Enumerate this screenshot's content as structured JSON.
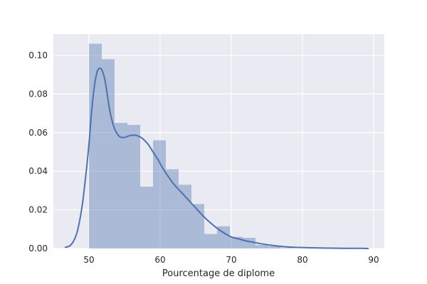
{
  "chart_data": {
    "type": "bar",
    "title": "",
    "xlabel": "Pourcentage de diplome",
    "ylabel": "",
    "xlim": [
      45,
      91.5
    ],
    "ylim": [
      0,
      0.111
    ],
    "grid": true,
    "x_ticks": [
      50,
      60,
      70,
      80,
      90
    ],
    "y_ticks": [
      0.0,
      0.02,
      0.04,
      0.06,
      0.08,
      0.1
    ],
    "x_tick_labels": [
      "50",
      "60",
      "70",
      "80",
      "90"
    ],
    "y_tick_labels": [
      "0.00",
      "0.02",
      "0.04",
      "0.06",
      "0.08",
      "0.10"
    ],
    "histogram": {
      "bin_edges": [
        50,
        51.8,
        53.6,
        55.4,
        57.2,
        59.0,
        60.8,
        62.6,
        64.4,
        66.2,
        68.0,
        69.8,
        71.6,
        73.4,
        75.2,
        77.0,
        78.8
      ],
      "density": [
        0.106,
        0.098,
        0.065,
        0.064,
        0.032,
        0.056,
        0.041,
        0.033,
        0.023,
        0.0075,
        0.0115,
        0.006,
        0.0055,
        0.0018,
        0.0012,
        0.0003
      ],
      "color": "#4c72b0",
      "opacity": 0.4
    },
    "kde": {
      "x": [
        46.6,
        47.5,
        48.3,
        49.0,
        49.5,
        50.0,
        50.4,
        50.8,
        51.2,
        51.7,
        52.2,
        52.6,
        53.0,
        53.6,
        54.3,
        55.0,
        55.8,
        56.7,
        57.5,
        58.3,
        59.0,
        59.7,
        60.3,
        61.0,
        62.0,
        63.0,
        64.0,
        65.0,
        66.0,
        67.0,
        68.0,
        69.0,
        70.0,
        71.0,
        72.0,
        73.0,
        74.0,
        75.0,
        76.0,
        77.0,
        78.0,
        80.0,
        82.0,
        84.0,
        86.0,
        88.0,
        89.3
      ],
      "y": [
        0.0005,
        0.002,
        0.008,
        0.021,
        0.036,
        0.054,
        0.072,
        0.085,
        0.092,
        0.093,
        0.088,
        0.079,
        0.07,
        0.062,
        0.058,
        0.0575,
        0.0585,
        0.0585,
        0.057,
        0.054,
        0.05,
        0.046,
        0.042,
        0.038,
        0.033,
        0.029,
        0.025,
        0.021,
        0.017,
        0.0135,
        0.0105,
        0.008,
        0.006,
        0.005,
        0.004,
        0.0033,
        0.0026,
        0.002,
        0.0015,
        0.0011,
        0.0008,
        0.0005,
        0.0003,
        0.0002,
        0.0001,
        0.0001,
        0.0
      ],
      "color": "#4c72b0"
    },
    "plot_background": "#eaeaf2",
    "grid_color": "#ffffff"
  }
}
